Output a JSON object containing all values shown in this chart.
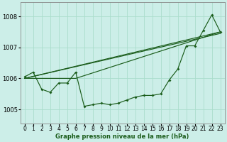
{
  "title": "Graphe pression niveau de la mer (hPa)",
  "background_color": "#cceee8",
  "grid_color": "#aaddcc",
  "line_color": "#1a5c1a",
  "x_ticks": [
    0,
    1,
    2,
    3,
    4,
    5,
    6,
    7,
    8,
    9,
    10,
    11,
    12,
    13,
    14,
    15,
    16,
    17,
    18,
    19,
    20,
    21,
    22,
    23
  ],
  "y_ticks": [
    1005,
    1006,
    1007,
    1008
  ],
  "ylim": [
    1004.55,
    1008.45
  ],
  "xlim": [
    -0.5,
    23.5
  ],
  "series1": {
    "x": [
      0,
      1,
      2,
      3,
      4,
      5,
      6,
      7,
      8,
      9,
      10,
      11,
      12,
      13,
      14,
      15,
      16,
      17,
      18,
      19,
      20,
      21,
      22,
      23
    ],
    "y": [
      1006.05,
      1006.2,
      1005.65,
      1005.55,
      1005.85,
      1005.85,
      1006.2,
      1005.1,
      1005.15,
      1005.2,
      1005.15,
      1005.2,
      1005.3,
      1005.4,
      1005.45,
      1005.45,
      1005.5,
      1005.95,
      1006.3,
      1007.05,
      1007.05,
      1007.55,
      1008.05,
      1007.5
    ]
  },
  "trend1": {
    "x": [
      0,
      23
    ],
    "y": [
      1006.0,
      1007.45
    ]
  },
  "trend2": {
    "x": [
      0,
      23
    ],
    "y": [
      1006.0,
      1007.5
    ]
  },
  "trend3": {
    "x": [
      0,
      6,
      23
    ],
    "y": [
      1006.0,
      1006.0,
      1007.5
    ]
  },
  "spine_color": "#888888",
  "tick_fontsize": 5.5,
  "xlabel_fontsize": 6.0
}
